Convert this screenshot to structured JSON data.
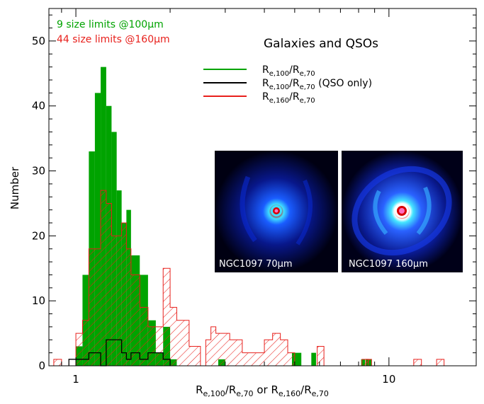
{
  "chart_data": {
    "type": "histogram",
    "title": "Galaxies and QSOs",
    "ylabel": "Number",
    "xlabel": {
      "a_main": "R",
      "a_sub": "e,100",
      "a_sep": "/",
      "a2_main": "R",
      "a2_sub": "e,70",
      "or": " or ",
      "b_main": "R",
      "b_sub": "e,160",
      "b_sep": "/",
      "b2_main": "R",
      "b2_sub": "e,70"
    },
    "x_scale": "log",
    "xlim": [
      0.82,
      19.0
    ],
    "ylim": [
      0,
      55
    ],
    "x_ticks": [
      1,
      10
    ],
    "x_tick_labels": [
      "1",
      "10"
    ],
    "y_ticks": [
      0,
      10,
      20,
      30,
      40,
      50
    ],
    "y_tick_labels": [
      "0",
      "10",
      "20",
      "30",
      "40",
      "50"
    ],
    "bin_edges": [
      0.85,
      0.9,
      0.95,
      1.0,
      1.05,
      1.1,
      1.15,
      1.2,
      1.25,
      1.3,
      1.35,
      1.4,
      1.45,
      1.5,
      1.6,
      1.7,
      1.8,
      1.9,
      2.0,
      2.1,
      2.2,
      2.3,
      2.4,
      2.5,
      2.6,
      2.7,
      2.8,
      2.95,
      3.1,
      3.25,
      3.4,
      3.6,
      3.8,
      4.0,
      4.25,
      4.5,
      4.75,
      5.0,
      5.3,
      5.6,
      5.9,
      6.2,
      6.6,
      7.0,
      7.4,
      7.8,
      8.2,
      8.6,
      9.0,
      9.5,
      10.0,
      10.5,
      11.0,
      11.5,
      12.0,
      12.7,
      13.4,
      14.2,
      15.0,
      16.0
    ],
    "series": [
      {
        "name_main": "R",
        "name_sub1": "e,100",
        "name_sep": "/",
        "name_main2": "R",
        "name_sub2": "e,70",
        "name_suffix": "",
        "style": "filled",
        "color": "#00a300",
        "values": [
          0,
          0,
          0,
          3,
          14,
          33,
          42,
          46,
          40,
          36,
          27,
          22,
          24,
          17,
          14,
          7,
          2,
          6,
          1,
          0,
          0,
          0,
          0,
          0,
          0,
          0,
          0,
          0,
          0,
          0,
          0,
          0,
          0,
          0,
          0,
          0,
          0,
          0,
          0,
          0,
          0,
          0,
          0,
          0,
          0,
          0,
          0,
          0,
          0,
          0,
          0,
          0,
          0,
          0,
          0,
          0,
          0,
          0,
          0
        ]
      },
      {
        "name_main": "R",
        "name_sub1": "e,100",
        "name_sep": "/",
        "name_main2": "R",
        "name_sub2": "e,70",
        "name_suffix": " (QSO only)",
        "style": "step",
        "color": "#000000",
        "values": [
          0,
          0,
          0,
          0,
          0,
          0,
          0,
          0,
          0,
          0,
          0,
          0,
          0,
          0,
          0,
          0,
          0,
          0,
          0,
          0,
          0,
          0,
          0,
          0,
          0,
          0,
          0,
          0,
          0,
          0,
          0,
          0,
          0,
          0,
          0,
          0,
          0,
          0,
          0,
          0,
          0,
          0,
          0,
          0,
          0,
          0,
          0,
          0,
          0,
          0,
          0,
          0,
          0,
          0,
          0,
          0,
          0,
          0,
          0
        ]
      },
      {
        "name_main": "R",
        "name_sub1": "e,160",
        "name_sep": "/",
        "name_main2": "R",
        "name_sub2": "e,70",
        "name_suffix": "",
        "style": "hatched",
        "color": "#e8201c",
        "values": [
          1,
          0,
          0,
          5,
          7,
          18,
          18,
          27,
          25,
          20,
          20,
          22,
          18,
          14,
          9,
          6,
          6,
          15,
          9,
          7,
          7,
          3,
          3,
          0,
          4,
          6,
          5,
          5,
          4,
          4,
          2,
          2,
          2,
          4,
          5,
          4,
          2,
          0,
          0,
          0,
          3,
          0,
          0,
          0,
          0,
          0,
          1,
          0,
          0,
          0,
          0,
          0,
          0,
          0,
          1,
          0,
          0,
          1,
          0
        ]
      }
    ],
    "qso_bins": [
      [
        0.95,
        1.0,
        1
      ],
      [
        1.0,
        1.05,
        1
      ],
      [
        1.05,
        1.1,
        1
      ],
      [
        1.1,
        1.15,
        2
      ],
      [
        1.15,
        1.2,
        2
      ],
      [
        1.2,
        1.25,
        0
      ],
      [
        1.25,
        1.3,
        4
      ],
      [
        1.3,
        1.35,
        4
      ],
      [
        1.35,
        1.4,
        4
      ],
      [
        1.4,
        1.45,
        2
      ],
      [
        1.45,
        1.5,
        1
      ],
      [
        1.5,
        1.6,
        2
      ],
      [
        1.6,
        1.7,
        1
      ],
      [
        1.7,
        1.8,
        2
      ],
      [
        1.8,
        1.9,
        2
      ],
      [
        1.9,
        2.0,
        1
      ]
    ],
    "extra_green_bins": [
      [
        2.85,
        3.0,
        1
      ],
      [
        4.9,
        5.25,
        2
      ],
      [
        5.65,
        5.85,
        2
      ],
      [
        8.15,
        8.4,
        1
      ],
      [
        8.45,
        8.8,
        1
      ]
    ],
    "extra_red_bins": [
      [
        8.45,
        8.8,
        1
      ]
    ],
    "annotations": [
      {
        "text_pre": "9 size limits @100",
        "text_mu": "μ",
        "text_post": "m",
        "color": "#00a300"
      },
      {
        "text_pre": "44 size limits @160",
        "text_mu": "μ",
        "text_post": "m",
        "color": "#e8201c"
      }
    ],
    "insets": [
      {
        "label_pre": "NGC1097 70",
        "label_mu": "μ",
        "label_post": "m"
      },
      {
        "label_pre": "NGC1097 160",
        "label_mu": "μ",
        "label_post": "m"
      }
    ],
    "legend_position": "top-right",
    "grid": false
  }
}
